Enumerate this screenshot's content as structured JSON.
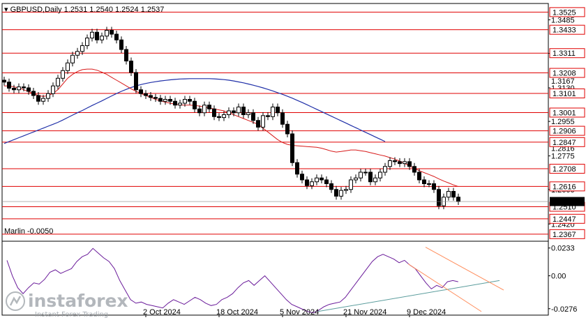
{
  "chart_data": {
    "type": "candlestick",
    "symbol": "GBPUSD",
    "timeframe": "Daily",
    "ohlc_header": {
      "open": "1.2531",
      "high": "1.2540",
      "low": "1.2524",
      "close": "1.2537"
    },
    "y_range": [
      1.233,
      1.357
    ],
    "price_tick_labels": [
      "1.3485",
      "1.3310",
      "1.3130",
      "1.2955",
      "1.2775",
      "1.2600",
      "1.2420"
    ],
    "hidden_tick_labels": [
      "1.3167",
      "1.2816"
    ],
    "current_price_label": "1.2537",
    "current_price": 1.2537,
    "horizontal_levels": [
      1.3525,
      1.3433,
      1.3311,
      1.3208,
      1.3101,
      1.3001,
      1.2906,
      1.2847,
      1.2708,
      1.2616,
      1.251,
      1.2447,
      1.2367
    ],
    "level_labels": [
      "1.3525",
      "1.3433",
      "1.3311",
      "1.3208",
      "1.3101",
      "1.3001",
      "1.2906",
      "1.2847",
      "1.2708",
      "1.2616",
      "1.2510",
      "1.2447",
      "1.2367"
    ],
    "x_labels": [
      "2 Oct 2024",
      "18 Oct 2024",
      "5 Nov 2024",
      "21 Nov 2024",
      "9 Dec 2024"
    ],
    "x_label_bar_index": [
      29,
      44,
      57,
      70,
      83
    ],
    "candles_close": [
      1.316,
      1.3128,
      1.312,
      1.3135,
      1.313,
      1.3112,
      1.309,
      1.306,
      1.3075,
      1.31,
      1.314,
      1.318,
      1.322,
      1.326,
      1.33,
      1.332,
      1.335,
      1.339,
      1.342,
      1.338,
      1.34,
      1.343,
      1.341,
      1.338,
      1.333,
      1.327,
      1.321,
      1.312,
      1.31,
      1.309,
      1.308,
      1.3075,
      1.306,
      1.307,
      1.306,
      1.304,
      1.305,
      1.307,
      1.306,
      1.302,
      1.3,
      1.304,
      1.302,
      1.298,
      1.2975,
      1.299,
      1.301,
      1.3,
      1.303,
      1.299,
      1.3,
      1.296,
      1.2925,
      1.2985,
      1.298,
      1.303,
      1.3,
      1.294,
      1.289,
      1.274,
      1.268,
      1.265,
      1.262,
      1.264,
      1.266,
      1.265,
      1.263,
      1.26,
      1.2565,
      1.2595,
      1.26,
      1.265,
      1.266,
      1.269,
      1.269,
      1.264,
      1.266,
      1.269,
      1.272,
      1.275,
      1.2745,
      1.2735,
      1.2745,
      1.272,
      1.269,
      1.265,
      1.263,
      1.263,
      1.26,
      1.2515,
      1.256,
      1.259,
      1.256,
      1.2537
    ],
    "ma_red": [
      1.314,
      1.314,
      1.3135,
      1.313,
      1.312,
      1.311,
      1.31,
      1.309,
      1.3085,
      1.309,
      1.31,
      1.312,
      1.315,
      1.318,
      1.32,
      1.3215,
      1.3225,
      1.3228,
      1.3228,
      1.3222,
      1.3212,
      1.32,
      1.3185,
      1.317,
      1.3155,
      1.314,
      1.3125,
      1.3112,
      1.31,
      1.309,
      1.308,
      1.307,
      1.3062,
      1.3055,
      1.305,
      1.3045,
      1.304,
      1.304,
      1.304,
      1.3038,
      1.3035,
      1.303,
      1.3025,
      1.302,
      1.3015,
      1.301,
      1.3,
      1.299,
      1.298,
      1.297,
      1.296,
      1.295,
      1.294,
      1.292,
      1.29,
      1.288,
      1.286,
      1.2845,
      1.2835,
      1.283,
      1.2828,
      1.2826,
      1.2824,
      1.2822,
      1.282,
      1.2815,
      1.2808,
      1.28,
      1.2795,
      1.2798,
      1.2802,
      1.2806,
      1.2806,
      1.2802,
      1.2798,
      1.2792,
      1.2786,
      1.278,
      1.2774,
      1.2766,
      1.2758,
      1.2748,
      1.2736,
      1.2722,
      1.271,
      1.2698,
      1.2688,
      1.2678,
      1.2668,
      1.2655,
      1.2644,
      1.2634,
      1.2624,
      1.2615
    ],
    "ma_blue": [
      1.284,
      1.285,
      1.286,
      1.287,
      1.288,
      1.289,
      1.29,
      1.291,
      1.292,
      1.293,
      1.294,
      1.295,
      1.2962,
      1.2975,
      1.2988,
      1.3,
      1.3012,
      1.3025,
      1.3038,
      1.305,
      1.3062,
      1.3075,
      1.3088,
      1.31,
      1.3112,
      1.3122,
      1.3132,
      1.314,
      1.3147,
      1.3153,
      1.3158,
      1.3162,
      1.3166,
      1.3169,
      1.3172,
      1.3174,
      1.3176,
      1.3177,
      1.3178,
      1.3178,
      1.3178,
      1.3178,
      1.3178,
      1.3177,
      1.3175,
      1.3173,
      1.317,
      1.3166,
      1.3161,
      1.3156,
      1.315,
      1.3144,
      1.3137,
      1.313,
      1.3122,
      1.3114,
      1.3105,
      1.3096,
      1.3086,
      1.3076,
      1.3065,
      1.3054,
      1.3042,
      1.303,
      1.3018,
      1.3006,
      1.2994,
      1.2982,
      1.297,
      1.2958,
      1.2946,
      1.2934,
      1.2922,
      1.291,
      1.2898,
      1.2886,
      1.2874,
      1.2862,
      1.285
    ],
    "marlin_label": "Marlin -0.0050",
    "marlin_range": [
      -0.033,
      0.029
    ],
    "marlin_tick_labels": [
      "0.0233",
      "0.00",
      "-0.0276"
    ],
    "marlin_ticks": [
      0.0233,
      0.0,
      -0.0276
    ],
    "marlin_values": [
      0.013,
      0.0,
      -0.01,
      -0.015,
      -0.01,
      -0.006,
      -0.007,
      -0.003,
      0.003,
      0.005,
      0.002,
      0.004,
      0.006,
      0.012,
      0.016,
      0.018,
      0.023,
      0.019,
      0.015,
      0.012,
      0.006,
      -0.004,
      -0.012,
      -0.02,
      -0.023,
      -0.022,
      -0.024,
      -0.025,
      -0.026,
      -0.027,
      -0.023,
      -0.02,
      -0.022,
      -0.024,
      -0.021,
      -0.018,
      -0.02,
      -0.023,
      -0.025,
      -0.024,
      -0.02,
      -0.018,
      -0.015,
      -0.01,
      -0.006,
      -0.004,
      -0.008,
      -0.004,
      0.0,
      -0.005,
      -0.01,
      -0.015,
      -0.02,
      -0.024,
      -0.026,
      -0.028,
      -0.03,
      -0.031,
      -0.029,
      -0.026,
      -0.024,
      -0.023,
      -0.022,
      -0.018,
      -0.012,
      -0.006,
      0.0,
      0.006,
      0.012,
      0.016,
      0.018,
      0.016,
      0.014,
      0.011,
      0.013,
      0.009,
      0.006,
      0.0,
      -0.006,
      -0.011,
      -0.008,
      -0.01,
      -0.005,
      -0.004,
      -0.005
    ],
    "colors": {
      "level_line": "#e00000",
      "ma_red": "#d81a1a",
      "ma_blue": "#1f2fa8",
      "candle": "#000000",
      "marlin_line": "#6a1b9a",
      "trend_line": "#5a9c9c",
      "channel": "#ff8c5a",
      "label_box": "#ffffff"
    },
    "watermark": {
      "brand": "instaforex",
      "tagline": "Instant Forex Trading"
    }
  }
}
